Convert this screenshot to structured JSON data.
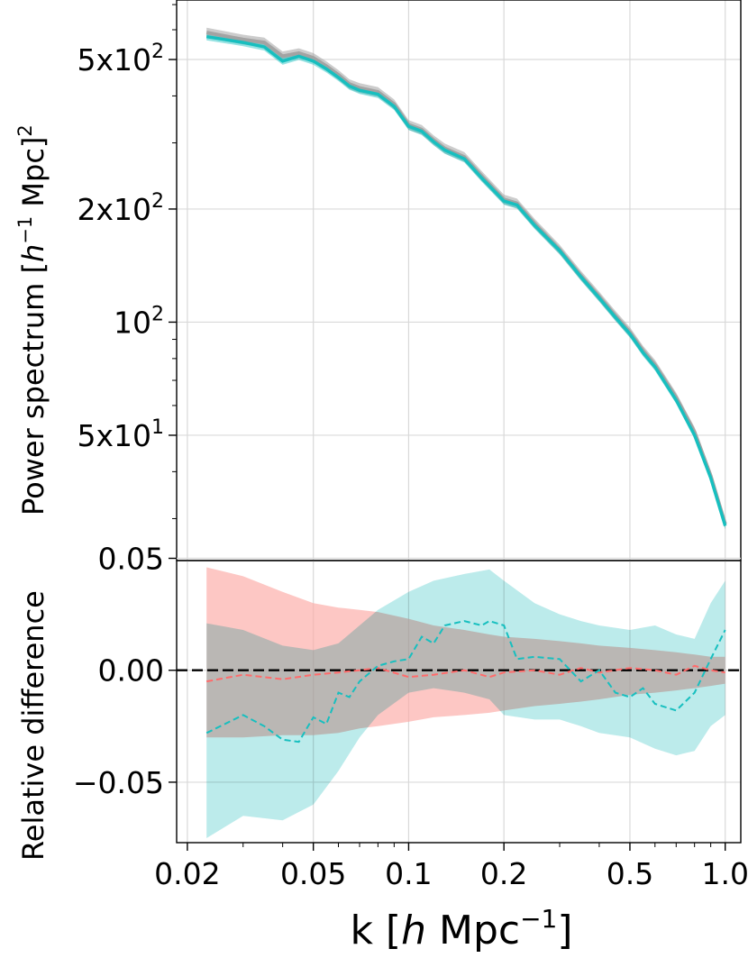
{
  "chart_data": [
    {
      "type": "line",
      "panel": "top",
      "ylabel_main": "Power spectrum [",
      "ylabel_h": "h",
      "ylabel_sup": "−1",
      "ylabel_mpc": " Mpc]",
      "ylabel_sq": "2",
      "yscale": "log",
      "xscale": "log",
      "xlim": [
        0.0185,
        1.12
      ],
      "ylim": [
        23.2,
        720
      ],
      "grid": true,
      "yticks": [
        {
          "value": 500,
          "base": "5x10",
          "exp": "2"
        },
        {
          "value": 200,
          "base": "2x10",
          "exp": "2"
        },
        {
          "value": 100,
          "base": "10",
          "exp": "2"
        },
        {
          "value": 50,
          "base": "5x10",
          "exp": "1"
        }
      ],
      "minor_yticks": [
        30,
        40,
        60,
        70,
        80,
        90,
        300,
        400,
        600,
        700
      ],
      "colors": {
        "reference": "#a3a3a3",
        "model": "#17bfbf"
      },
      "x": [
        0.023,
        0.03,
        0.035,
        0.04,
        0.045,
        0.05,
        0.055,
        0.06,
        0.065,
        0.07,
        0.08,
        0.09,
        0.1,
        0.11,
        0.12,
        0.13,
        0.15,
        0.17,
        0.2,
        0.22,
        0.25,
        0.3,
        0.35,
        0.4,
        0.45,
        0.5,
        0.55,
        0.6,
        0.7,
        0.8,
        0.9,
        1.0
      ],
      "series": [
        {
          "values": [
            590,
            565,
            555,
            510,
            520,
            505,
            480,
            455,
            430,
            420,
            410,
            380,
            335,
            325,
            305,
            290,
            275,
            245,
            212,
            207,
            183,
            156,
            133,
            117,
            104,
            94,
            84,
            77,
            63,
            51,
            39,
            29
          ]
        },
        {
          "values": [
            575,
            555,
            540,
            495,
            510,
            495,
            472,
            448,
            425,
            414,
            404,
            375,
            332,
            322,
            302,
            287,
            272,
            242,
            210,
            205,
            181,
            155,
            132,
            116,
            103,
            93,
            83,
            76,
            62,
            50,
            38.5,
            28.7
          ]
        }
      ],
      "band_frac": {
        "reference": 0.03,
        "model": 0.022
      }
    },
    {
      "type": "line",
      "panel": "bottom",
      "ylabel": "Relative difference",
      "xlabel_k": "k [",
      "xlabel_h": "h",
      "xlabel_mpc": " Mpc",
      "xlabel_sup": "−1",
      "xlabel_close": "]",
      "xscale": "log",
      "xlim": [
        0.0185,
        1.12
      ],
      "ylim": [
        -0.077,
        0.049
      ],
      "grid": true,
      "xticks": [
        {
          "value": 0.02,
          "label": "0.02"
        },
        {
          "value": 0.05,
          "label": "0.05"
        },
        {
          "value": 0.1,
          "label": "0.1"
        },
        {
          "value": 0.2,
          "label": "0.2"
        },
        {
          "value": 0.5,
          "label": "0.5"
        },
        {
          "value": 1.0,
          "label": "1.0"
        }
      ],
      "minor_xticks": [
        0.03,
        0.04,
        0.06,
        0.07,
        0.08,
        0.09,
        0.3,
        0.4,
        0.6,
        0.7,
        0.8,
        0.9
      ],
      "yticks": [
        {
          "value": 0.05,
          "label": "0.05"
        },
        {
          "value": 0.0,
          "label": "0.00"
        },
        {
          "value": -0.05,
          "label": "−0.05"
        }
      ],
      "zero_line": 0.0,
      "colors": {
        "red": "#ff6b6b",
        "red_band": "#fca9a4",
        "cyan": "#17bfbf",
        "cyan_band": "#8fdddd"
      },
      "red_band": {
        "x": [
          0.023,
          0.03,
          0.04,
          0.05,
          0.06,
          0.07,
          0.08,
          0.1,
          0.12,
          0.15,
          0.18,
          0.2,
          0.25,
          0.3,
          0.35,
          0.4,
          0.5,
          0.6,
          0.7,
          0.8,
          0.9,
          1.0
        ],
        "upper": [
          0.046,
          0.042,
          0.035,
          0.03,
          0.028,
          0.027,
          0.026,
          0.023,
          0.02,
          0.018,
          0.016,
          0.015,
          0.014,
          0.013,
          0.012,
          0.011,
          0.01,
          0.009,
          0.008,
          0.007,
          0.006,
          0.006
        ],
        "lower": [
          -0.03,
          -0.03,
          -0.029,
          -0.029,
          -0.028,
          -0.026,
          -0.025,
          -0.023,
          -0.021,
          -0.02,
          -0.019,
          -0.018,
          -0.016,
          -0.015,
          -0.014,
          -0.013,
          -0.011,
          -0.01,
          -0.009,
          -0.008,
          -0.007,
          -0.006
        ]
      },
      "cyan_band": {
        "x": [
          0.023,
          0.03,
          0.04,
          0.05,
          0.06,
          0.07,
          0.08,
          0.1,
          0.12,
          0.15,
          0.18,
          0.2,
          0.25,
          0.3,
          0.35,
          0.4,
          0.5,
          0.6,
          0.7,
          0.8,
          0.9,
          1.0
        ],
        "upper": [
          0.021,
          0.018,
          0.011,
          0.009,
          0.012,
          0.02,
          0.027,
          0.035,
          0.04,
          0.043,
          0.045,
          0.04,
          0.03,
          0.025,
          0.022,
          0.02,
          0.018,
          0.02,
          0.016,
          0.014,
          0.03,
          0.04
        ],
        "lower": [
          -0.075,
          -0.065,
          -0.067,
          -0.06,
          -0.045,
          -0.03,
          -0.02,
          -0.01,
          -0.008,
          -0.01,
          -0.013,
          -0.02,
          -0.022,
          -0.022,
          -0.025,
          -0.028,
          -0.03,
          -0.035,
          -0.038,
          -0.036,
          -0.025,
          -0.02
        ]
      },
      "red_line": {
        "x": [
          0.023,
          0.03,
          0.04,
          0.05,
          0.06,
          0.07,
          0.08,
          0.1,
          0.12,
          0.15,
          0.18,
          0.2,
          0.25,
          0.3,
          0.35,
          0.4,
          0.5,
          0.6,
          0.7,
          0.8,
          0.9,
          1.0
        ],
        "y": [
          -0.005,
          -0.002,
          -0.004,
          -0.002,
          -0.001,
          0.0,
          0.001,
          -0.003,
          -0.002,
          0.0,
          -0.003,
          -0.001,
          0.0,
          -0.002,
          0.001,
          -0.001,
          0.001,
          0.0,
          -0.002,
          0.002,
          0.0,
          -0.001
        ]
      },
      "cyan_line": {
        "x": [
          0.023,
          0.03,
          0.035,
          0.04,
          0.045,
          0.05,
          0.055,
          0.06,
          0.065,
          0.07,
          0.08,
          0.09,
          0.1,
          0.11,
          0.12,
          0.13,
          0.15,
          0.17,
          0.18,
          0.2,
          0.22,
          0.25,
          0.3,
          0.35,
          0.4,
          0.45,
          0.5,
          0.55,
          0.6,
          0.7,
          0.8,
          0.9,
          1.0
        ],
        "y": [
          -0.028,
          -0.02,
          -0.025,
          -0.031,
          -0.032,
          -0.021,
          -0.024,
          -0.01,
          -0.012,
          -0.005,
          0.002,
          0.004,
          0.005,
          0.015,
          0.012,
          0.02,
          0.022,
          0.02,
          0.022,
          0.02,
          0.005,
          0.006,
          0.005,
          -0.005,
          0.0,
          -0.01,
          -0.012,
          -0.008,
          -0.015,
          -0.018,
          -0.01,
          0.005,
          0.018
        ]
      }
    }
  ]
}
